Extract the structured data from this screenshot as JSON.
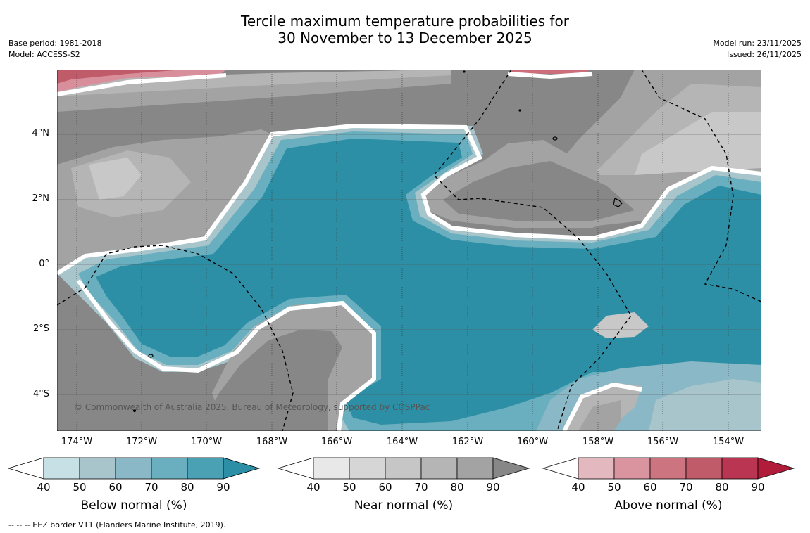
{
  "title": {
    "line1": "Tercile maximum temperature probabilities for",
    "line2": "30 November to 13 December 2025"
  },
  "meta": {
    "base_period": "Base period: 1981-2018",
    "model": "Model: ACCESS-S2",
    "model_run": "Model run: 23/11/2025",
    "issued": "Issued: 26/11/2025"
  },
  "map": {
    "lat_range": [
      -5,
      6
    ],
    "lon_range": [
      -174.6,
      -152.6
    ],
    "lat_labels": [
      "4°N",
      "2°N",
      "0°",
      "2°S",
      "4°S"
    ],
    "lon_labels": [
      "174°W",
      "172°W",
      "170°W",
      "168°W",
      "166°W",
      "164°W",
      "162°W",
      "160°W",
      "158°W",
      "156°W",
      "154°W"
    ],
    "copyright": "© Commonwealth of Australia 2025, Bureau of Meteorology, supported by COSPPac",
    "colors": {
      "near_90": "#878787",
      "near_80": "#a3a3a3",
      "near_70": "#b5b5b5",
      "near_60": "#c8c8c8",
      "below_90": "#2d8fa5",
      "below_80": "#4aa1b3",
      "below_70": "#6aafbf",
      "below_60": "#8bb8c6",
      "below_50": "#a7c5cb",
      "above_50": "#e0b5bc",
      "above_60": "#d98f9b",
      "above_70": "#cc6f7a",
      "above_80": "#c05b69",
      "above_90": "#b8213d"
    }
  },
  "colorbars": [
    {
      "title": "Below normal (%)",
      "ticks": [
        "40",
        "50",
        "60",
        "70",
        "80",
        "90"
      ],
      "colors": [
        "#ffffff",
        "#c6e0e6",
        "#a7c5cb",
        "#8bb8c6",
        "#6aafbf",
        "#4aa1b3",
        "#2d8fa5"
      ]
    },
    {
      "title": "Near normal (%)",
      "ticks": [
        "40",
        "50",
        "60",
        "70",
        "80",
        "90"
      ],
      "colors": [
        "#ffffff",
        "#e8e8e8",
        "#d6d6d6",
        "#c6c6c6",
        "#b5b5b5",
        "#a3a3a3",
        "#878787"
      ]
    },
    {
      "title": "Above normal (%)",
      "ticks": [
        "40",
        "50",
        "60",
        "70",
        "80",
        "90"
      ],
      "colors": [
        "#ffffff",
        "#e3b8bf",
        "#d9949f",
        "#cc7580",
        "#c05b69",
        "#b93551",
        "#b01c3a"
      ]
    }
  ],
  "footnote": "--  --  -- EEZ border V11 (Flanders Marine Institute, 2019)."
}
